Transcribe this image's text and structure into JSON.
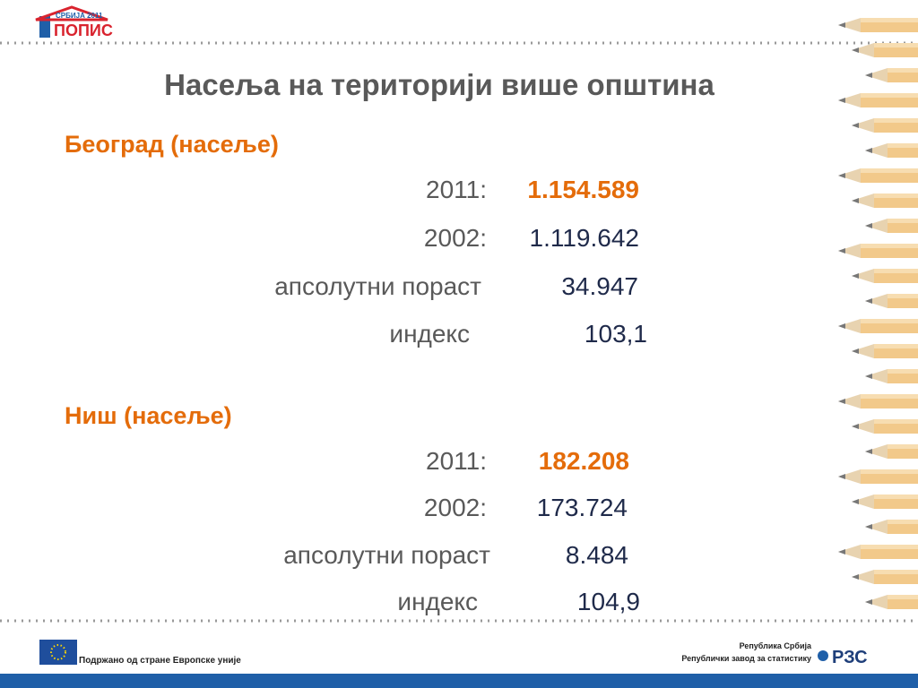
{
  "logo": {
    "top": "СРБИЈА 2011",
    "word": "ПОПИС"
  },
  "title": "Насеља на територији више општина",
  "sections": [
    {
      "heading": "Београд (насеље)",
      "rows": [
        {
          "label": "2011:",
          "value": "1.154.589"
        },
        {
          "label": "2002:",
          "value": "1.119.642"
        },
        {
          "label": "апсолутни пораст",
          "value": "34.947"
        },
        {
          "label": "индекс",
          "value": "103,1"
        }
      ]
    },
    {
      "heading": "Ниш (насеље)",
      "rows": [
        {
          "label": "2011:",
          "value": "182.208"
        },
        {
          "label": "2002:",
          "value": "173.724"
        },
        {
          "label": "апсолутни пораст",
          "value": "8.484"
        },
        {
          "label": "индекс",
          "value": "104,9"
        }
      ]
    }
  ],
  "footer": {
    "eu": "Подржано од стране Европске уније",
    "org_line1": "Република Србија",
    "org_line2": "Републички завод за статистику",
    "org_logo": "РЗС"
  }
}
